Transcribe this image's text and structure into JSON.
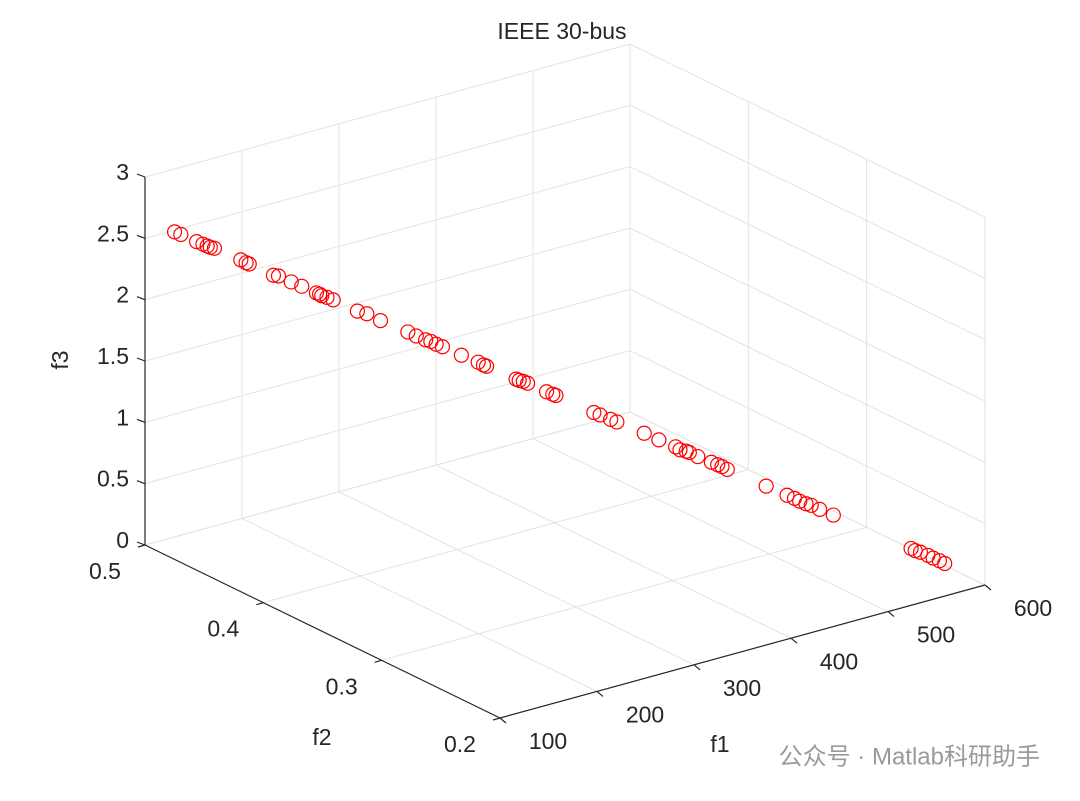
{
  "chart_data": {
    "type": "scatter3d",
    "title": "IEEE 30-bus",
    "xlabel": "f1",
    "ylabel": "f2",
    "zlabel": "f3",
    "color": "#ff0000",
    "grid": true,
    "xlim": [
      100,
      600
    ],
    "ylim": [
      0.2,
      0.5
    ],
    "zlim": [
      0,
      3
    ],
    "xticks": [
      100,
      200,
      300,
      400,
      500,
      600
    ],
    "yticks": [
      0.2,
      0.3,
      0.4,
      0.5
    ],
    "zticks": [
      0,
      0.5,
      1,
      1.5,
      2,
      2.5,
      3
    ],
    "x": [
      100,
      104,
      113,
      117,
      119,
      121,
      124,
      139,
      142,
      144,
      158,
      162,
      169,
      175,
      184,
      186,
      187,
      190,
      194,
      208,
      214,
      222,
      238,
      243,
      249,
      252,
      255,
      259,
      270,
      280,
      283,
      285,
      302,
      304,
      307,
      309,
      320,
      324,
      326,
      348,
      352,
      358,
      362,
      378,
      387,
      397,
      399,
      403,
      405,
      410,
      418,
      422,
      424,
      427,
      450,
      463,
      467,
      470,
      474,
      477,
      482,
      490,
      536,
      539,
      542,
      546,
      549,
      553,
      556
    ],
    "y": [
      0.475,
      0.473,
      0.467,
      0.465,
      0.463,
      0.462,
      0.461,
      0.451,
      0.449,
      0.448,
      0.439,
      0.438,
      0.433,
      0.429,
      0.424,
      0.423,
      0.422,
      0.42,
      0.418,
      0.409,
      0.406,
      0.401,
      0.391,
      0.388,
      0.385,
      0.383,
      0.381,
      0.379,
      0.372,
      0.366,
      0.364,
      0.363,
      0.352,
      0.351,
      0.35,
      0.348,
      0.341,
      0.339,
      0.338,
      0.324,
      0.322,
      0.318,
      0.316,
      0.306,
      0.301,
      0.295,
      0.293,
      0.291,
      0.29,
      0.287,
      0.282,
      0.28,
      0.278,
      0.276,
      0.262,
      0.255,
      0.252,
      0.25,
      0.248,
      0.246,
      0.243,
      0.238,
      0.21,
      0.209,
      0.207,
      0.204,
      0.202,
      0.2,
      0.198
    ],
    "z": [
      2.67,
      2.65,
      2.6,
      2.58,
      2.57,
      2.56,
      2.55,
      2.47,
      2.45,
      2.44,
      2.36,
      2.35,
      2.31,
      2.28,
      2.23,
      2.22,
      2.21,
      2.2,
      2.18,
      2.1,
      2.08,
      2.03,
      1.95,
      1.92,
      1.89,
      1.88,
      1.86,
      1.84,
      1.78,
      1.73,
      1.71,
      1.7,
      1.61,
      1.6,
      1.59,
      1.58,
      1.52,
      1.5,
      1.49,
      1.37,
      1.35,
      1.32,
      1.3,
      1.22,
      1.17,
      1.12,
      1.1,
      1.09,
      1.08,
      1.05,
      1.01,
      0.99,
      0.98,
      0.96,
      0.84,
      0.77,
      0.75,
      0.73,
      0.71,
      0.7,
      0.67,
      0.63,
      0.39,
      0.37,
      0.36,
      0.34,
      0.32,
      0.3,
      0.28
    ]
  },
  "watermark": "公众号 · Matlab科研助手"
}
